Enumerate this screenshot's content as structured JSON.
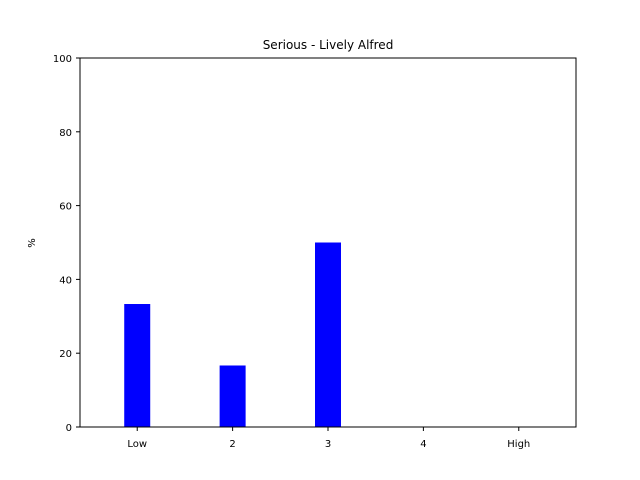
{
  "chart_data": {
    "type": "bar",
    "title": "Serious - Lively Alfred",
    "xlabel": "",
    "ylabel": "%",
    "categories": [
      "Low",
      "2",
      "3",
      "4",
      "High"
    ],
    "values": [
      33.33,
      16.67,
      50,
      0,
      0
    ],
    "ylim": [
      0,
      100
    ],
    "yticks": [
      0,
      20,
      40,
      60,
      80,
      100
    ],
    "bar_color": "#0000ff",
    "grid": false,
    "legend": "none"
  }
}
